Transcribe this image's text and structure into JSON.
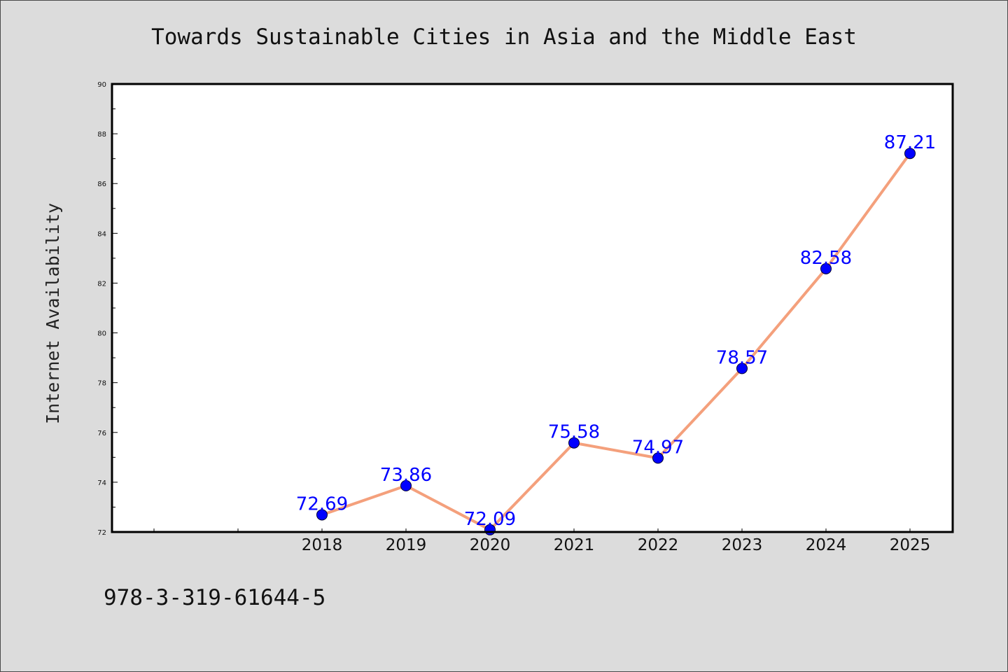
{
  "chart_data": {
    "type": "line",
    "title": "Towards Sustainable Cities in Asia and the Middle East",
    "xlabel": "",
    "ylabel": "Internet Availability",
    "categories": [
      "2018",
      "2019",
      "2020",
      "2021",
      "2022",
      "2023",
      "2024",
      "2025"
    ],
    "series": [
      {
        "values": [
          72.69,
          73.86,
          72.09,
          75.58,
          74.97,
          78.57,
          82.58,
          87.21
        ],
        "labels": [
          "72.69",
          "73.86",
          "72.09",
          "75.58",
          "74.97",
          "78.57",
          "82.58",
          "87.21"
        ]
      }
    ],
    "ylim": [
      72,
      90
    ],
    "yticks": [
      "72",
      "74",
      "76",
      "78",
      "80",
      "82",
      "84",
      "86",
      "88",
      "90"
    ],
    "grid": false,
    "line_color": "#f4a07c",
    "marker_color": "#0000ff",
    "label_color": "#0000ff",
    "background_color": "#dcdcdc",
    "plot_background": "#ffffff"
  },
  "footer": {
    "isbn": "978-3-319-61644-5"
  }
}
